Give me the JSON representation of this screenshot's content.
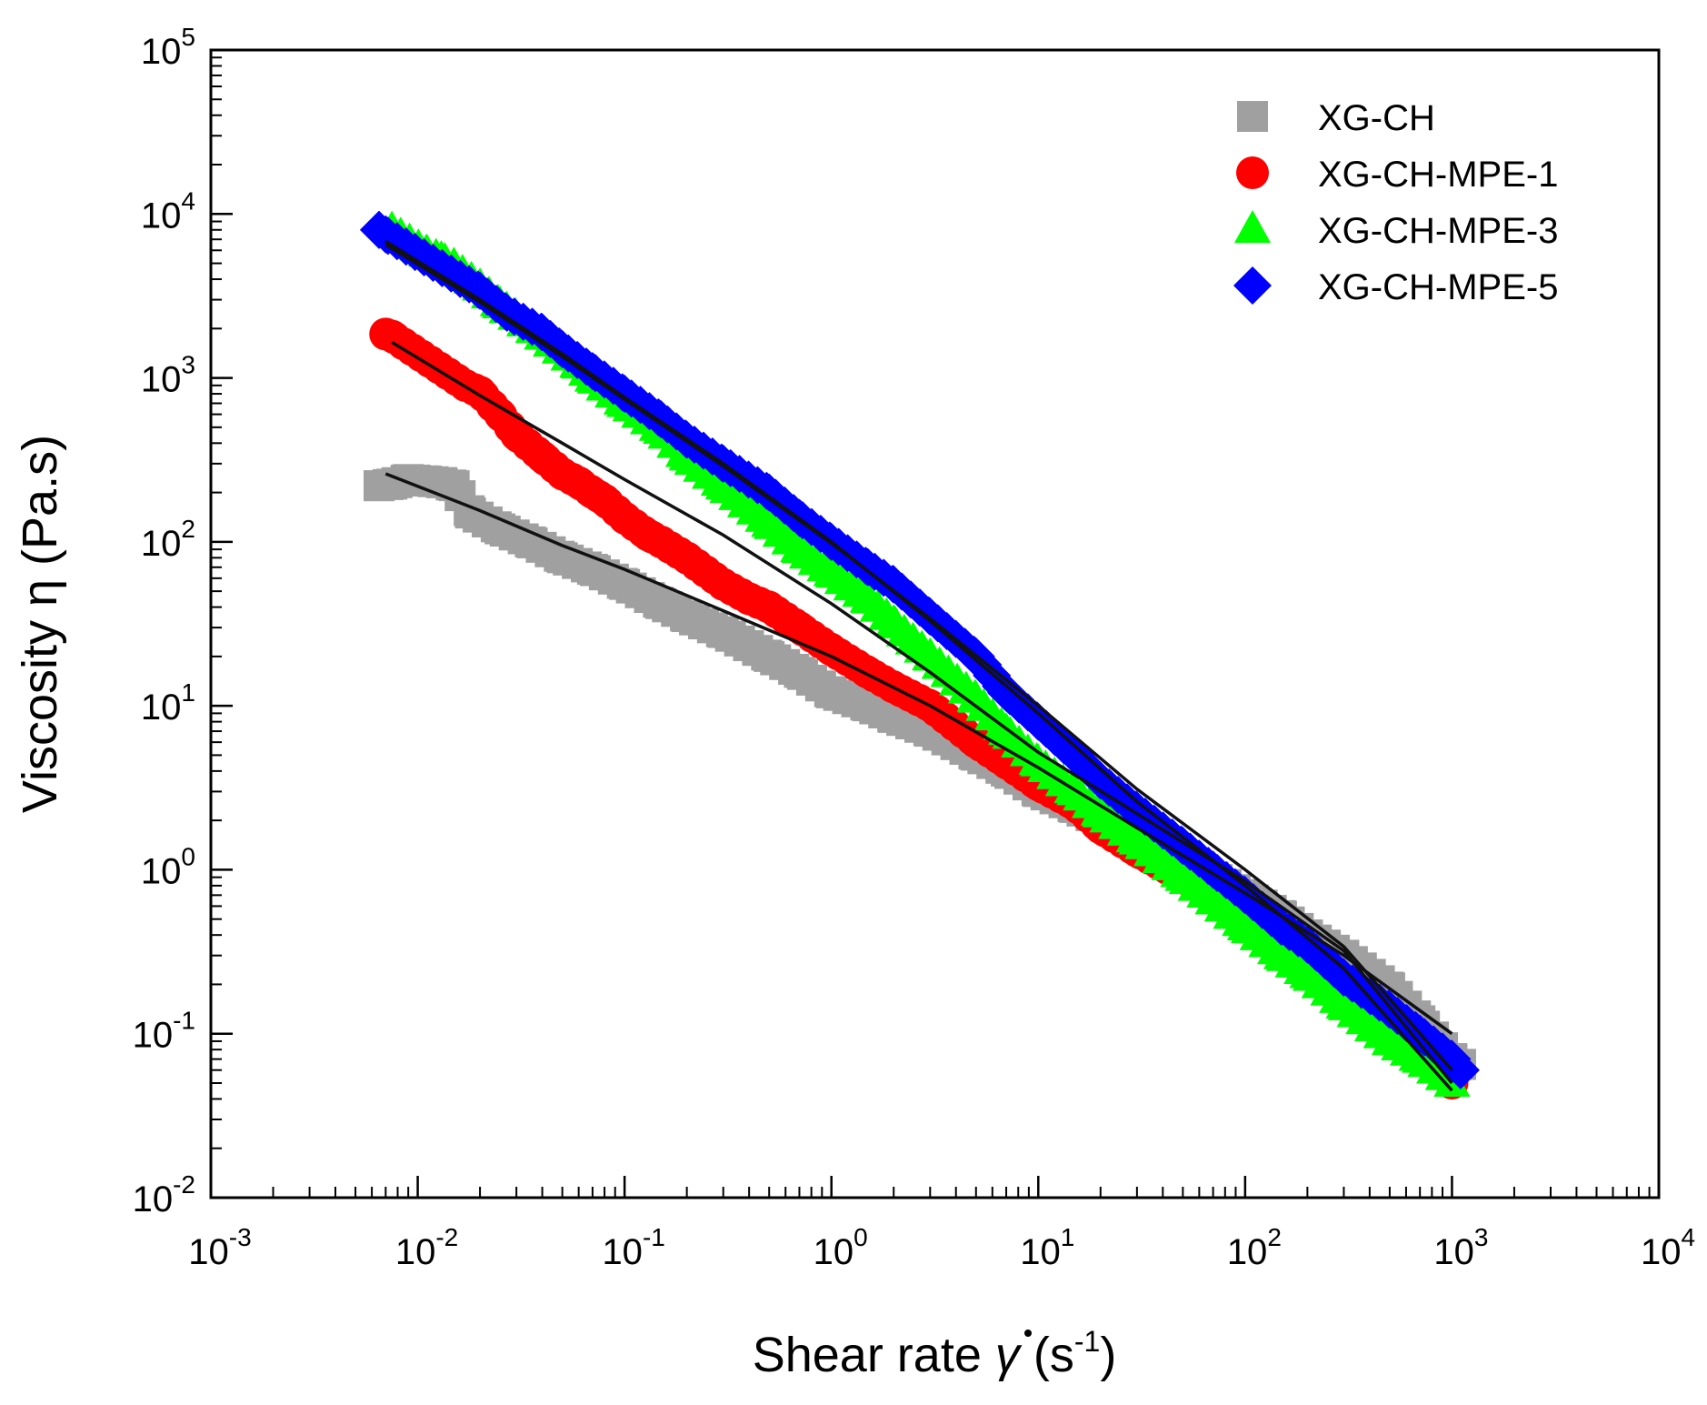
{
  "chart_data": {
    "type": "scatter",
    "xscale": "log",
    "yscale": "log",
    "xlim": [
      0.001,
      10000
    ],
    "ylim": [
      0.01,
      100000
    ],
    "x_ticks": [
      {
        "base": "10",
        "exp": "-3"
      },
      {
        "base": "10",
        "exp": "-2"
      },
      {
        "base": "10",
        "exp": "-1"
      },
      {
        "base": "10",
        "exp": "0"
      },
      {
        "base": "10",
        "exp": "1"
      },
      {
        "base": "10",
        "exp": "2"
      },
      {
        "base": "10",
        "exp": "3"
      },
      {
        "base": "10",
        "exp": "4"
      }
    ],
    "y_ticks": [
      {
        "base": "10",
        "exp": "-2"
      },
      {
        "base": "10",
        "exp": "-1"
      },
      {
        "base": "10",
        "exp": "0"
      },
      {
        "base": "10",
        "exp": "1"
      },
      {
        "base": "10",
        "exp": "2"
      },
      {
        "base": "10",
        "exp": "3"
      },
      {
        "base": "10",
        "exp": "4"
      },
      {
        "base": "10",
        "exp": "5"
      }
    ],
    "xlabel": {
      "main": "Shear rate ",
      "symbol": "γ",
      "units_open": " (s",
      "units_exp": "-1",
      "units_close": ")"
    },
    "ylabel": "Viscosity η (Pa.s)",
    "legend_position": "top-right",
    "grid": false,
    "series": [
      {
        "name": "XG-CH",
        "marker": "square",
        "color": "#a0a0a0",
        "points": [
          [
            0.0065,
            220
          ],
          [
            0.0075,
            225
          ],
          [
            0.009,
            240
          ],
          [
            0.011,
            235
          ],
          [
            0.013,
            230
          ],
          [
            0.015,
            220
          ],
          [
            0.018,
            150
          ],
          [
            0.025,
            120
          ],
          [
            0.035,
            100
          ],
          [
            0.05,
            80
          ],
          [
            0.07,
            68
          ],
          [
            0.1,
            55
          ],
          [
            0.15,
            42
          ],
          [
            0.2,
            35
          ],
          [
            0.3,
            28
          ],
          [
            0.5,
            20
          ],
          [
            0.7,
            16
          ],
          [
            1,
            12
          ],
          [
            1.5,
            10
          ],
          [
            2,
            8.5
          ],
          [
            3,
            7
          ],
          [
            5,
            5
          ],
          [
            7,
            4
          ],
          [
            10,
            3
          ],
          [
            15,
            2.4
          ],
          [
            20,
            2
          ],
          [
            30,
            1.6
          ],
          [
            50,
            1.1
          ],
          [
            70,
            0.9
          ],
          [
            100,
            0.7
          ],
          [
            150,
            0.52
          ],
          [
            200,
            0.4
          ],
          [
            300,
            0.3
          ],
          [
            500,
            0.19
          ],
          [
            700,
            0.12
          ],
          [
            1000,
            0.07
          ],
          [
            1100,
            0.065
          ]
        ],
        "fit": [
          [
            0.007,
            260
          ],
          [
            0.02,
            155
          ],
          [
            0.05,
            95
          ],
          [
            0.1,
            68
          ],
          [
            0.3,
            38
          ],
          [
            1,
            20
          ],
          [
            3,
            10
          ],
          [
            10,
            4.2
          ],
          [
            30,
            1.8
          ],
          [
            100,
            0.72
          ],
          [
            300,
            0.3
          ],
          [
            1000,
            0.1
          ]
        ]
      },
      {
        "name": "XG-CH-MPE-1",
        "marker": "circle",
        "color": "#ff0000",
        "points": [
          [
            0.007,
            1850
          ],
          [
            0.0075,
            1800
          ],
          [
            0.017,
            900
          ],
          [
            0.02,
            820
          ],
          [
            0.025,
            600
          ],
          [
            0.03,
            450
          ],
          [
            0.04,
            330
          ],
          [
            0.05,
            260
          ],
          [
            0.06,
            230
          ],
          [
            0.07,
            200
          ],
          [
            0.08,
            180
          ],
          [
            0.1,
            140
          ],
          [
            0.13,
            110
          ],
          [
            0.15,
            100
          ],
          [
            0.2,
            80
          ],
          [
            0.3,
            55
          ],
          [
            0.4,
            45
          ],
          [
            0.5,
            40
          ],
          [
            0.7,
            30
          ],
          [
            1,
            22
          ],
          [
            1.5,
            16
          ],
          [
            2,
            13
          ],
          [
            3,
            10
          ],
          [
            5,
            6
          ],
          [
            7,
            4.5
          ],
          [
            10,
            3.3
          ],
          [
            15,
            2.5
          ],
          [
            20,
            1.8
          ],
          [
            30,
            1.3
          ],
          [
            50,
            0.9
          ],
          [
            70,
            0.7
          ],
          [
            100,
            0.48
          ],
          [
            150,
            0.35
          ],
          [
            200,
            0.28
          ],
          [
            300,
            0.2
          ],
          [
            500,
            0.12
          ],
          [
            700,
            0.075
          ],
          [
            1000,
            0.05
          ]
        ],
        "fit": [
          [
            0.0075,
            1650
          ],
          [
            0.02,
            780
          ],
          [
            0.05,
            400
          ],
          [
            0.1,
            240
          ],
          [
            0.3,
            110
          ],
          [
            1,
            42
          ],
          [
            3,
            16
          ],
          [
            10,
            5.2
          ],
          [
            30,
            2.2
          ],
          [
            100,
            0.85
          ],
          [
            300,
            0.32
          ],
          [
            1000,
            0.05
          ]
        ]
      },
      {
        "name": "XG-CH-MPE-3",
        "marker": "triangle",
        "color": "#00ff00",
        "points": [
          [
            0.0075,
            8000
          ],
          [
            0.011,
            5800
          ],
          [
            0.013,
            5300
          ],
          [
            0.015,
            4800
          ],
          [
            0.02,
            3600
          ],
          [
            0.025,
            2800
          ],
          [
            0.04,
            1800
          ],
          [
            0.06,
            1200
          ],
          [
            0.07,
            1000
          ],
          [
            0.1,
            700
          ],
          [
            0.15,
            480
          ],
          [
            0.2,
            330
          ],
          [
            0.3,
            220
          ],
          [
            0.5,
            130
          ],
          [
            0.7,
            90
          ],
          [
            1,
            65
          ],
          [
            1.5,
            45
          ],
          [
            2,
            32
          ],
          [
            3,
            20
          ],
          [
            5,
            11
          ],
          [
            7,
            7
          ],
          [
            10,
            4.5
          ],
          [
            15,
            3
          ],
          [
            20,
            2.2
          ],
          [
            30,
            1.5
          ],
          [
            50,
            0.9
          ],
          [
            70,
            0.65
          ],
          [
            100,
            0.45
          ],
          [
            150,
            0.3
          ],
          [
            200,
            0.23
          ],
          [
            300,
            0.15
          ],
          [
            500,
            0.09
          ],
          [
            700,
            0.07
          ],
          [
            1000,
            0.05
          ]
        ],
        "fit": [
          [
            0.007,
            6800
          ],
          [
            0.02,
            3000
          ],
          [
            0.05,
            1400
          ],
          [
            0.1,
            760
          ],
          [
            0.3,
            300
          ],
          [
            1,
            100
          ],
          [
            3,
            33
          ],
          [
            10,
            9
          ],
          [
            30,
            2.6
          ],
          [
            100,
            0.8
          ],
          [
            300,
            0.25
          ],
          [
            1000,
            0.045
          ]
        ]
      },
      {
        "name": "XG-CH-MPE-5",
        "marker": "diamond",
        "color": "#0000ff",
        "points": [
          [
            0.0065,
            8000
          ],
          [
            0.007,
            7500
          ],
          [
            0.02,
            3400
          ],
          [
            0.027,
            2500
          ],
          [
            0.04,
            1900
          ],
          [
            0.05,
            1500
          ],
          [
            0.07,
            1100
          ],
          [
            0.1,
            800
          ],
          [
            0.15,
            560
          ],
          [
            0.2,
            420
          ],
          [
            0.3,
            300
          ],
          [
            0.5,
            200
          ],
          [
            0.7,
            140
          ],
          [
            1,
            100
          ],
          [
            1.5,
            70
          ],
          [
            2,
            55
          ],
          [
            3,
            35
          ],
          [
            5,
            20
          ],
          [
            7,
            12
          ],
          [
            10,
            8
          ],
          [
            15,
            5
          ],
          [
            20,
            3.5
          ],
          [
            30,
            2.3
          ],
          [
            50,
            1.4
          ],
          [
            70,
            1
          ],
          [
            100,
            0.7
          ],
          [
            150,
            0.45
          ],
          [
            200,
            0.35
          ],
          [
            300,
            0.22
          ],
          [
            500,
            0.14
          ],
          [
            700,
            0.1
          ],
          [
            1000,
            0.07
          ],
          [
            1100,
            0.06
          ]
        ],
        "fit": [
          [
            0.007,
            6500
          ],
          [
            0.02,
            2900
          ],
          [
            0.05,
            1350
          ],
          [
            0.1,
            740
          ],
          [
            0.3,
            290
          ],
          [
            1,
            98
          ],
          [
            3,
            34
          ],
          [
            10,
            10
          ],
          [
            30,
            3.1
          ],
          [
            100,
            1
          ],
          [
            300,
            0.34
          ],
          [
            1000,
            0.06
          ]
        ]
      }
    ]
  }
}
